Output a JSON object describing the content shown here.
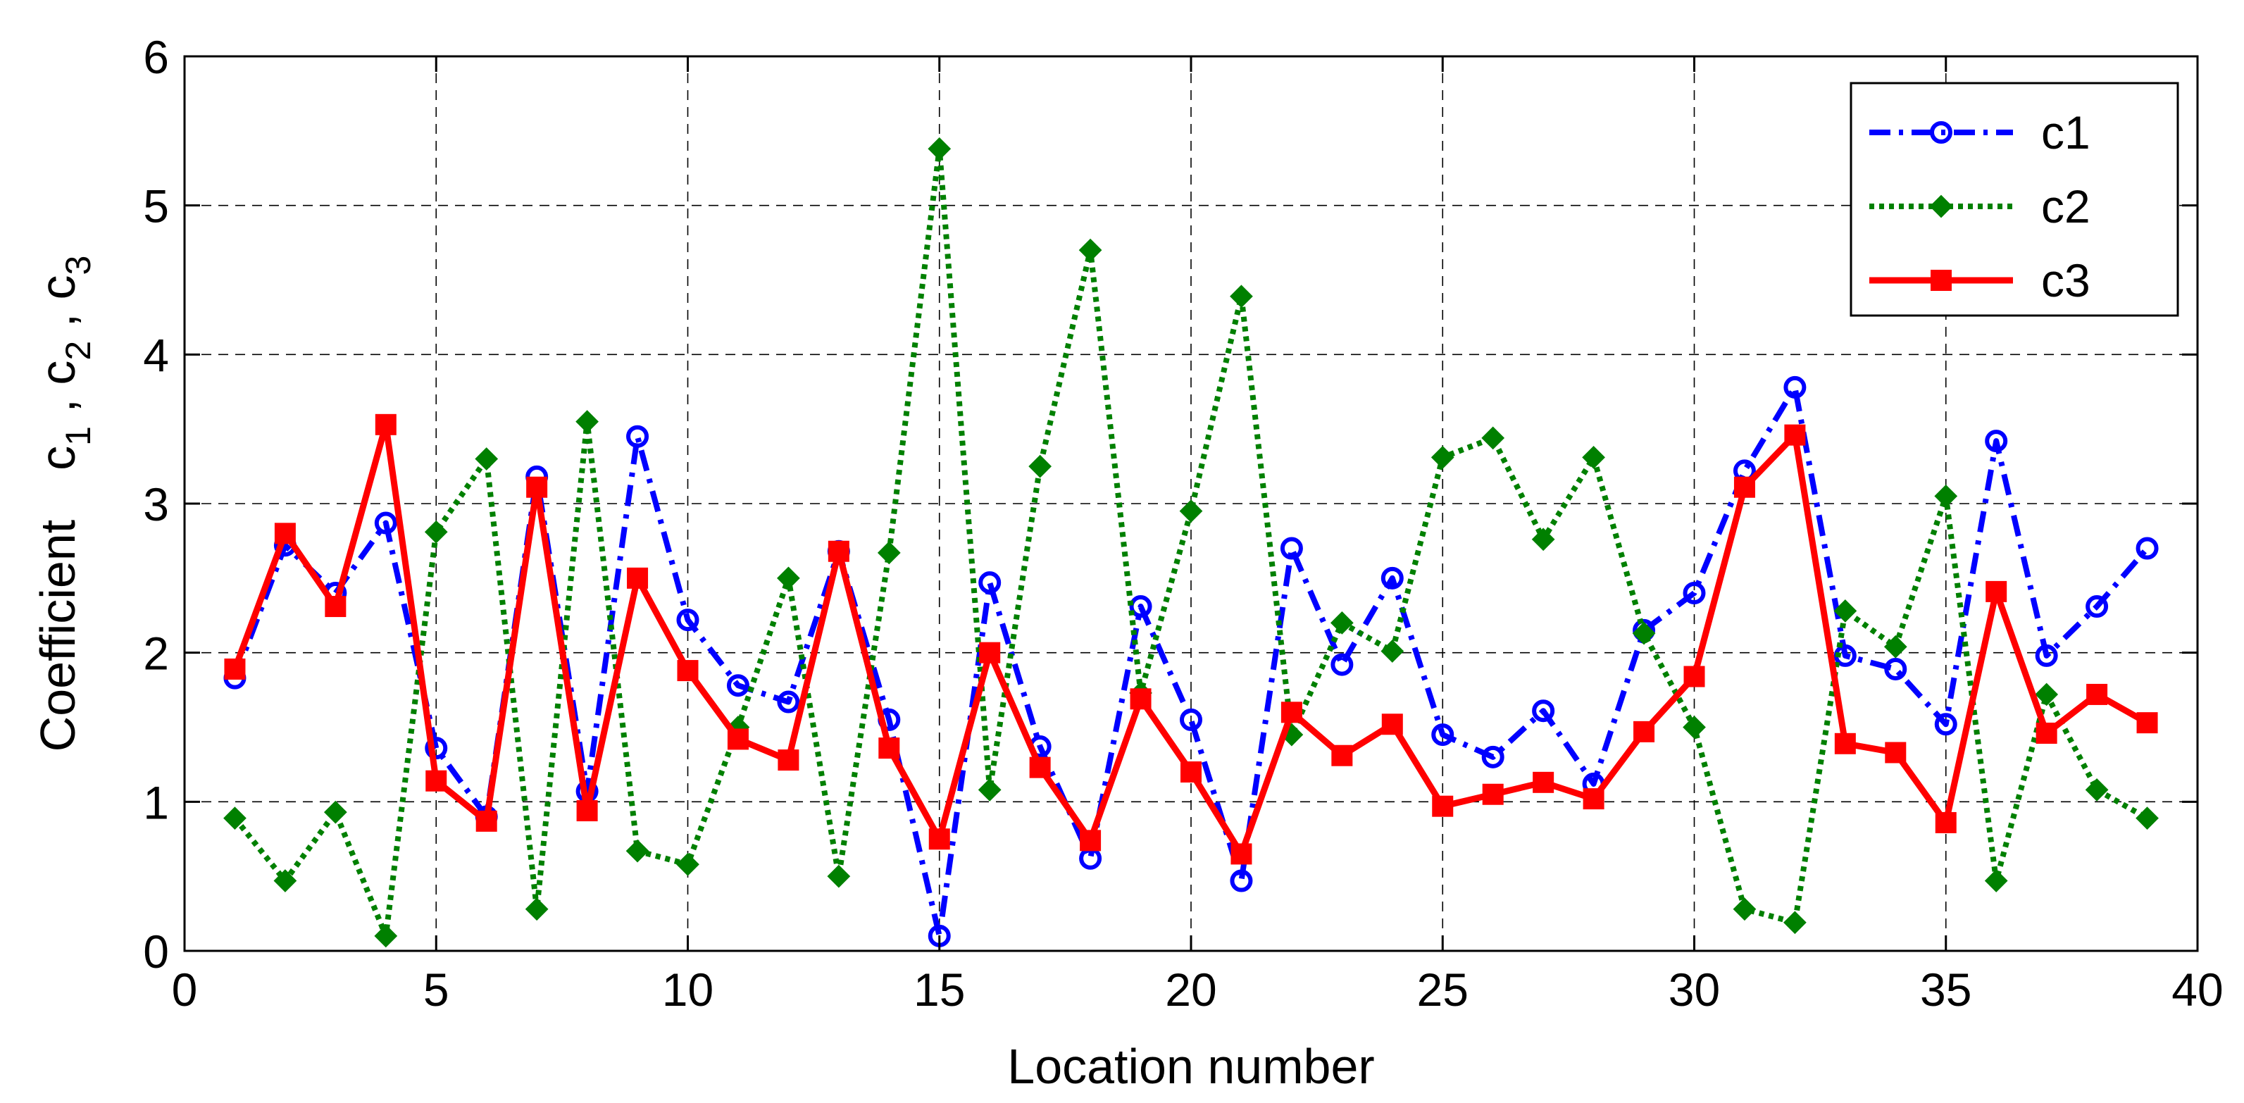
{
  "chart_data": {
    "type": "line",
    "xlabel": "Location number",
    "ylabel": {
      "prefix": "Coefficient",
      "parts": [
        {
          "base": "c",
          "sub": "1",
          "sep": " , "
        },
        {
          "base": "c",
          "sub": "2",
          "sep": " , "
        },
        {
          "base": "c",
          "sub": "3",
          "sep": ""
        }
      ]
    },
    "xlim": [
      0,
      40
    ],
    "ylim": [
      0,
      6
    ],
    "xticks": [
      0,
      5,
      10,
      15,
      20,
      25,
      30,
      35,
      40
    ],
    "yticks": [
      0,
      1,
      2,
      3,
      4,
      5,
      6
    ],
    "grid": true,
    "legend_position": "top-right",
    "x": [
      1,
      2,
      3,
      4,
      5,
      6,
      7,
      8,
      9,
      10,
      11,
      12,
      13,
      14,
      15,
      16,
      17,
      18,
      19,
      20,
      21,
      22,
      23,
      24,
      25,
      26,
      27,
      28,
      29,
      30,
      31,
      32,
      33,
      34,
      35,
      36,
      37,
      38,
      39
    ],
    "series": [
      {
        "name": "c1",
        "color": "#0000ff",
        "line_style": "dash-dot",
        "marker": "circle",
        "values": [
          1.83,
          2.72,
          2.4,
          2.87,
          1.36,
          0.9,
          3.18,
          1.07,
          3.45,
          2.22,
          1.78,
          1.67,
          2.68,
          1.55,
          0.1,
          2.47,
          1.37,
          0.62,
          2.31,
          1.55,
          0.47,
          2.7,
          1.92,
          2.5,
          1.45,
          1.3,
          1.61,
          1.12,
          2.15,
          2.4,
          3.22,
          3.78,
          1.98,
          1.89,
          1.52,
          3.42,
          1.98,
          2.31,
          2.7
        ]
      },
      {
        "name": "c2",
        "color": "#008000",
        "line_style": "dotted",
        "marker": "diamond",
        "values": [
          0.89,
          0.47,
          0.93,
          0.1,
          2.81,
          3.3,
          0.28,
          3.55,
          0.67,
          0.58,
          1.5,
          2.5,
          0.5,
          2.67,
          5.38,
          1.08,
          3.25,
          4.7,
          1.73,
          2.95,
          4.39,
          1.45,
          2.2,
          2.01,
          3.31,
          3.44,
          2.76,
          3.31,
          2.13,
          1.5,
          0.28,
          0.19,
          2.28,
          2.04,
          3.05,
          0.47,
          1.72,
          1.08,
          0.89
        ]
      },
      {
        "name": "c3",
        "color": "#ff0000",
        "line_style": "solid",
        "marker": "square",
        "values": [
          1.89,
          2.8,
          2.31,
          3.53,
          1.14,
          0.87,
          3.11,
          0.94,
          2.5,
          1.88,
          1.42,
          1.28,
          2.68,
          1.36,
          0.75,
          2.0,
          1.23,
          0.74,
          1.69,
          1.2,
          0.65,
          1.6,
          1.31,
          1.52,
          0.97,
          1.05,
          1.13,
          1.02,
          1.47,
          1.84,
          3.11,
          3.46,
          1.39,
          1.33,
          0.86,
          2.41,
          1.46,
          1.72,
          1.53
        ]
      }
    ]
  }
}
